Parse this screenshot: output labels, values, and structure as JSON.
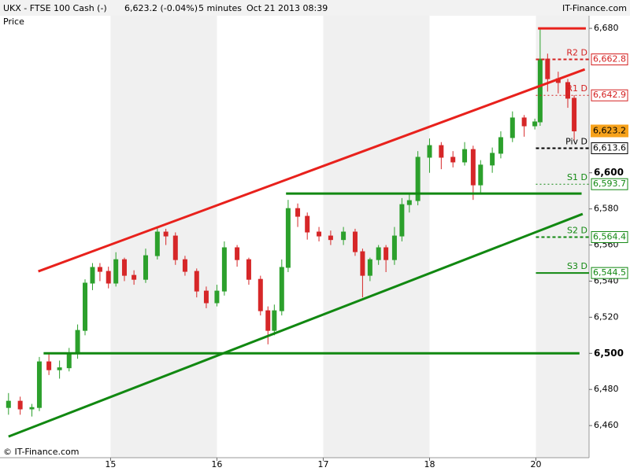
{
  "header": {
    "symbol": "UKX - FTSE 100 Cash (-)",
    "quote": "6,623.2 (-0.04%)",
    "interval": "5 minutes",
    "datetime": "Oct 21 2013 08:39",
    "brand": "IT-Finance.com"
  },
  "chart_data": {
    "type": "candlestick",
    "y_label": "Price",
    "copyright": "© IT-Finance.com",
    "up_color": "#2ca02c",
    "down_color": "#d62728",
    "x": [
      0.04,
      0.15,
      0.26,
      0.33,
      0.42,
      0.52,
      0.61,
      0.69,
      0.76,
      0.83,
      0.9,
      0.98,
      1.05,
      1.13,
      1.22,
      1.33,
      1.44,
      1.52,
      1.61,
      1.7,
      1.81,
      1.9,
      2.0,
      2.07,
      2.19,
      2.3,
      2.41,
      2.48,
      2.54,
      2.61,
      2.67,
      2.76,
      2.85,
      2.96,
      3.07,
      3.19,
      3.3,
      3.37,
      3.44,
      3.52,
      3.59,
      3.67,
      3.74,
      3.81,
      3.89,
      4.0,
      4.11,
      4.22,
      4.33,
      4.41,
      4.48,
      4.59,
      4.67,
      4.78,
      4.89,
      4.99,
      5.04,
      5.11,
      5.21,
      5.3,
      5.36
    ],
    "open": [
      6470,
      6473.5,
      6469.2,
      6470,
      6495.3,
      6490.9,
      6492,
      6499.7,
      6512.7,
      6538.9,
      6547.6,
      6545.4,
      6538.9,
      6551.9,
      6543.2,
      6541,
      6554.1,
      6567.2,
      6565,
      6551.9,
      6545.4,
      6534.5,
      6528,
      6534.5,
      6558.5,
      6551.9,
      6541,
      6523.6,
      6512.7,
      6523.6,
      6547.6,
      6580.2,
      6575.9,
      6567.2,
      6565,
      6563,
      6567.2,
      6556.3,
      6543.2,
      6551.9,
      6558.5,
      6551.9,
      6565,
      6582.4,
      6584.6,
      6608.6,
      6615.1,
      6608.6,
      6606,
      6612.9,
      6593.3,
      6604.3,
      6610.8,
      6619.5,
      6630.4,
      6626,
      6628.2,
      6663,
      6652.1,
      6650,
      6641.3
    ],
    "high": [
      6478,
      6476,
      6472,
      6498,
      6500,
      6496,
      6503,
      6516,
      6541,
      6550,
      6550,
      6548,
      6556,
      6553,
      6546,
      6558,
      6570,
      6569,
      6567,
      6554,
      6547,
      6537,
      6538,
      6562,
      6560,
      6553,
      6543,
      6526,
      6527,
      6552,
      6585,
      6583,
      6578,
      6570,
      6568,
      6570,
      6569,
      6558,
      6553,
      6560,
      6560,
      6570,
      6586,
      6588,
      6612,
      6619,
      6617,
      6612,
      6617,
      6615,
      6607,
      6614,
      6623,
      6634,
      6632,
      6630,
      6680,
      6666,
      6656,
      6652,
      6643
    ],
    "low": [
      6466,
      6466,
      6465,
      6468,
      6488,
      6486,
      6490,
      6497,
      6510,
      6535,
      6540,
      6536,
      6537,
      6540,
      6538,
      6539,
      6552,
      6560,
      6549,
      6543,
      6531,
      6525,
      6526,
      6532,
      6548,
      6538,
      6521,
      6505,
      6510,
      6521,
      6545,
      6570,
      6563,
      6562,
      6560,
      6560,
      6554,
      6531,
      6540,
      6549,
      6545,
      6549,
      6562,
      6578,
      6582,
      6600,
      6602,
      6603,
      6604,
      6585,
      6588,
      6600,
      6608,
      6617,
      6620,
      6624,
      6626,
      6645,
      6644,
      6636,
      6618
    ],
    "close": [
      6473.5,
      6469.2,
      6470,
      6495.3,
      6490.9,
      6492,
      6499.7,
      6512.7,
      6538.9,
      6547.6,
      6545.4,
      6538.9,
      6551.9,
      6543.2,
      6541,
      6554.1,
      6567.2,
      6565,
      6551.9,
      6545.4,
      6534.5,
      6528,
      6534.5,
      6558.5,
      6551.9,
      6541,
      6523.6,
      6512.7,
      6523.6,
      6547.6,
      6580.2,
      6575.9,
      6567.2,
      6565,
      6563,
      6567.2,
      6556.3,
      6543.2,
      6551.9,
      6558.5,
      6551.9,
      6565,
      6582.4,
      6584.6,
      6608.6,
      6615.1,
      6608.6,
      6606,
      6612.9,
      6593.3,
      6604.3,
      6610.8,
      6619.5,
      6630.4,
      6626,
      6628.2,
      6663,
      6652.1,
      6650,
      6641.3,
      6623.2
    ],
    "xlim": [
      -0.04,
      5.5
    ],
    "xticks": [
      {
        "value": 1,
        "label": "15"
      },
      {
        "value": 2,
        "label": "16"
      },
      {
        "value": 3,
        "label": "17"
      },
      {
        "value": 4,
        "label": "18"
      },
      {
        "value": 5,
        "label": "20"
      }
    ],
    "ylim": [
      6442.2,
      6687
    ],
    "yticks": [
      {
        "value": 6460,
        "label": "6,460"
      },
      {
        "value": 6480,
        "label": "6,480"
      },
      {
        "value": 6500,
        "label": "6,500"
      },
      {
        "value": 6520,
        "label": "6,520"
      },
      {
        "value": 6540,
        "label": "6,540"
      },
      {
        "value": 6560,
        "label": "6,560"
      },
      {
        "value": 6580,
        "label": "6,580"
      },
      {
        "value": 6600,
        "label": "6,600"
      },
      {
        "value": 6680,
        "label": "6,680"
      }
    ],
    "last_price": {
      "value": 6623.2,
      "label": "6,623.2"
    },
    "trendlines": [
      {
        "color": "#e8211c",
        "x": [
          0.32,
          5.46
        ],
        "values": [
          6545.4,
          6657.3
        ]
      },
      {
        "color": "#118811",
        "x": [
          0.04,
          5.44
        ],
        "values": [
          6453.9,
          6577.2
        ]
      },
      {
        "color": "#118811",
        "x": [
          0.37,
          5.41
        ],
        "values": [
          6500,
          6500
        ]
      },
      {
        "color": "#118811",
        "x": [
          2.65,
          5.43
        ],
        "values": [
          6588.5,
          6588.5
        ]
      },
      {
        "color": "#e8211c",
        "x": [
          5.02,
          5.47
        ],
        "values": [
          6680,
          6680
        ]
      }
    ],
    "levels": [
      {
        "name": "R2 D",
        "value": 6662.8,
        "label": "6,662.8",
        "color": "#d42020",
        "style": "dashed"
      },
      {
        "name": "R1 D",
        "value": 6642.9,
        "label": "6,642.9",
        "color": "#d42020",
        "style": "dotted"
      },
      {
        "name": "Piv D",
        "value": 6613.6,
        "label": "6,613.6",
        "color": "#000000",
        "style": "dashed"
      },
      {
        "name": "S1 D",
        "value": 6593.7,
        "label": "6,593.7",
        "color": "#118811",
        "style": "dotted"
      },
      {
        "name": "S2 D",
        "value": 6564.4,
        "label": "6,564.4",
        "color": "#118811",
        "style": "dashed"
      },
      {
        "name": "S3 D",
        "value": 6544.5,
        "label": "6,544.5",
        "color": "#118811",
        "style": "solid"
      }
    ]
  }
}
